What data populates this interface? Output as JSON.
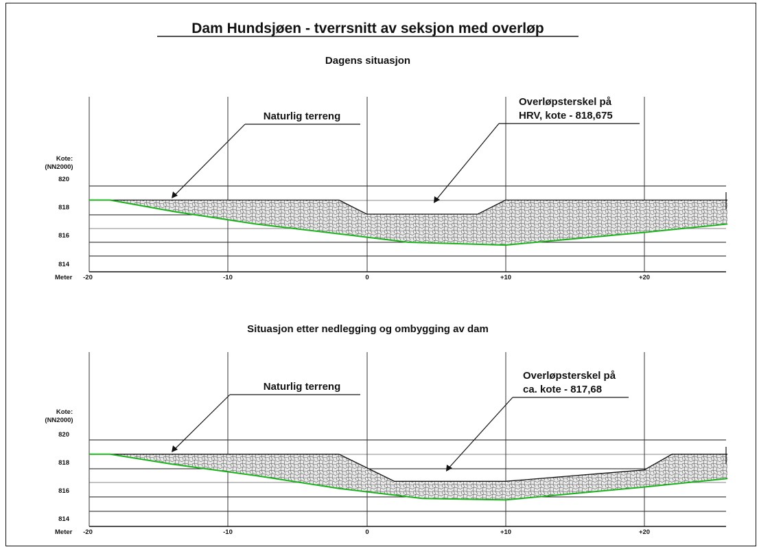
{
  "title": "Dam Hundsjøen - tverrsnitt av seksjon med overløp",
  "colors": {
    "terrain": "#1bb31b",
    "lines": "#111111",
    "fill": "#e6e6e6"
  },
  "panels": [
    {
      "subtitle": "Dagens situasjon",
      "terrain_label": "Naturlig terreng",
      "overflow_label_line1": "Overløpsterskel på",
      "overflow_label_line2": "HRV, kote - 818,675",
      "kote_label_1": "Kote:",
      "kote_label_2": "(NN2000)",
      "meter_label": "Meter",
      "y_ticks": [
        "820",
        "818",
        "816",
        "814"
      ],
      "x_ticks": [
        "-20",
        "-10",
        "0",
        "+10",
        "+20"
      ],
      "terrain_profile": {
        "x": [
          -20,
          -18.5,
          -14,
          -8,
          -2,
          3,
          10,
          20,
          26
        ],
        "elev": [
          819.0,
          819.0,
          818.2,
          817.3,
          816.6,
          816.0,
          815.8,
          816.7,
          817.3
        ]
      },
      "dam_profile": {
        "x": [
          -18.5,
          -2,
          0,
          8,
          10,
          26
        ],
        "elev": [
          819.0,
          819.0,
          818.0,
          818.0,
          819.0,
          819.0
        ]
      },
      "overflow_crest_elevation": 818.675
    },
    {
      "subtitle": "Situasjon etter nedlegging og ombygging av dam",
      "terrain_label": "Naturlig terreng",
      "overflow_label_line1": "Overløpsterskel på",
      "overflow_label_line2": "ca. kote - 817,68",
      "kote_label_1": "Kote:",
      "kote_label_2": "(NN2000)",
      "meter_label": "Meter",
      "y_ticks": [
        "820",
        "818",
        "816",
        "814"
      ],
      "x_ticks": [
        "-20",
        "-10",
        "0",
        "+10",
        "+20"
      ],
      "terrain_profile": {
        "x": [
          -20,
          -18.5,
          -14,
          -8,
          -2,
          4,
          10,
          20,
          26
        ],
        "elev": [
          819.0,
          819.0,
          818.3,
          817.5,
          816.6,
          815.9,
          815.8,
          816.7,
          817.3
        ]
      },
      "dam_profile": {
        "x": [
          -18.5,
          -2,
          2,
          10,
          20,
          22,
          26
        ],
        "elev": [
          819.0,
          819.0,
          817.1,
          817.1,
          817.9,
          819.0,
          819.0
        ]
      },
      "overflow_crest_elevation": 817.68
    }
  ]
}
